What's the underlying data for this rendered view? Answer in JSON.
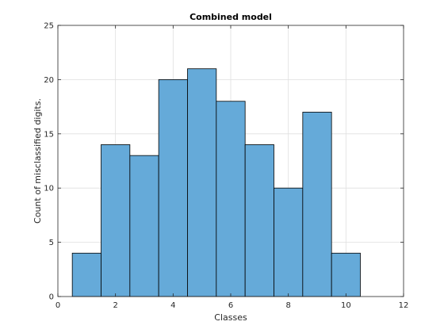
{
  "chart_data": {
    "type": "bar",
    "title": "Combined model",
    "xlabel": "Classes",
    "ylabel": "Count of misclassified digits.",
    "xlim": [
      0,
      12
    ],
    "ylim": [
      0,
      25
    ],
    "xticks": [
      0,
      2,
      4,
      6,
      8,
      10,
      12
    ],
    "yticks": [
      0,
      5,
      10,
      15,
      20,
      25
    ],
    "grid": true,
    "bar_width": 1,
    "categories": [
      1,
      2,
      3,
      4,
      5,
      6,
      7,
      8,
      9,
      10
    ],
    "values": [
      4,
      14,
      13,
      20,
      21,
      18,
      14,
      10,
      17,
      4
    ],
    "colors": {
      "bar_fill": "#65aad9",
      "bar_edge": "#000000",
      "grid": "#dfdfdf",
      "axis": "#262626"
    }
  }
}
